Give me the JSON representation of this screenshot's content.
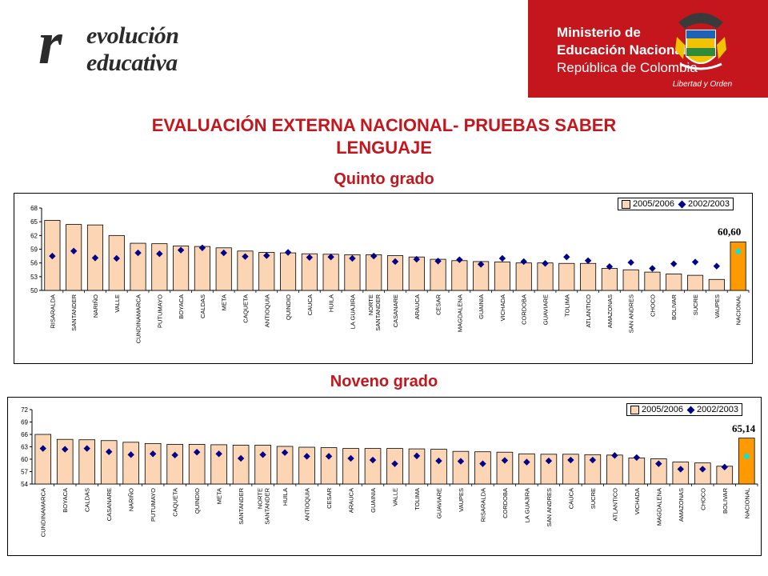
{
  "header": {
    "logo_r": "r",
    "logo_line1": "evolución",
    "logo_line2": "educativa",
    "ministry_line1": "Ministerio de",
    "ministry_line2": "Educación Nacional",
    "ministry_line3": "República de Colombia",
    "crest_caption": "Libertad y Orden"
  },
  "title": {
    "line1": "EVALUACIÓN EXTERNA NACIONAL- PRUEBAS SABER",
    "line2": "LENGUAJE"
  },
  "colors": {
    "bar": "#fcd5b4",
    "bar_national": "#ff9900",
    "marker": "#00008b",
    "marker_national": "#00e5e5",
    "accent_red": "#c4161c"
  },
  "chart_data": [
    {
      "type": "bar",
      "title": "Quinto grado",
      "legend": [
        "2005/2006",
        "2002/2003"
      ],
      "legend_position": "top-right",
      "ylim": [
        50,
        68
      ],
      "yticks": [
        50,
        53,
        56,
        59,
        62,
        65,
        68
      ],
      "categories": [
        "RISARALDA",
        "SANTANDER",
        "NARIÑO",
        "VALLE",
        "CUNDINAMARCA",
        "PUTUMAYO",
        "BOYACA",
        "CALDAS",
        "META",
        "CAQUETA",
        "ANTIOQUIA",
        "QUINDIO",
        "CAUCA",
        "HUILA",
        "LA GUAJIRA",
        "NORTE SANTANDER",
        "CASANARE",
        "ARAUCA",
        "CESAR",
        "MAGDALENA",
        "GUAINIA",
        "VICHADA",
        "CORDOBA",
        "GUAVIARE",
        "TOLIMA",
        "ATLANTICO",
        "AMAZONAS",
        "SAN ANDRES",
        "CHOCO",
        "BOLIVAR",
        "SUCRE",
        "VAUPES",
        "NACIONAL"
      ],
      "series": [
        {
          "name": "2005/2006",
          "type": "bar",
          "values": [
            65.3,
            64.4,
            64.3,
            62.0,
            60.3,
            60.2,
            59.7,
            59.6,
            59.3,
            58.6,
            58.3,
            58.2,
            58.0,
            57.9,
            57.8,
            57.8,
            57.6,
            57.3,
            56.8,
            56.5,
            56.3,
            56.2,
            56.0,
            56.0,
            55.9,
            55.9,
            54.8,
            54.5,
            54.0,
            53.6,
            53.3,
            52.4,
            60.6
          ]
        },
        {
          "name": "2002/2003",
          "type": "scatter",
          "values": [
            57.5,
            58.6,
            57.1,
            57.0,
            58.2,
            58.0,
            58.8,
            59.3,
            58.2,
            57.4,
            57.6,
            58.3,
            57.2,
            57.3,
            57.0,
            57.5,
            56.3,
            56.8,
            56.4,
            56.7,
            55.7,
            57.0,
            56.3,
            55.9,
            57.3,
            56.5,
            55.2,
            56.1,
            54.8,
            55.8,
            56.2,
            55.3,
            58.5
          ]
        }
      ],
      "data_labels": [
        {
          "category": "NACIONAL",
          "text": "60,60"
        }
      ]
    },
    {
      "type": "bar",
      "title": "Noveno grado",
      "legend": [
        "2005/2006",
        "2002/2003"
      ],
      "legend_position": "top-right",
      "ylim": [
        54,
        72
      ],
      "yticks": [
        54,
        57,
        60,
        63,
        66,
        69,
        72
      ],
      "categories": [
        "CUNDINAMARCA",
        "BOYACA",
        "CALDAS",
        "CASANARE",
        "NARIÑO",
        "PUTUMAYO",
        "CAQUETA",
        "QUINDIO",
        "META",
        "SANTANDER",
        "NORTE SANTANDER",
        "HUILA",
        "ANTIOQUIA",
        "CESAR",
        "ARAUCA",
        "GUAINIA",
        "VALLE",
        "TOLIMA",
        "GUAVIARE",
        "VAUPES",
        "RISARALDA",
        "CORDOBA",
        "LA GUAJIRA",
        "SAN ANDRES",
        "CAUCA",
        "SUCRE",
        "ATLANTICO",
        "VICHADA",
        "MAGDALENA",
        "AMAZONAS",
        "CHOCO",
        "BOLIVAR",
        "NACIONAL"
      ],
      "series": [
        {
          "name": "2005/2006",
          "type": "bar",
          "values": [
            66.0,
            64.8,
            64.7,
            64.5,
            64.1,
            63.8,
            63.6,
            63.6,
            63.5,
            63.4,
            63.4,
            63.1,
            62.9,
            62.8,
            62.6,
            62.6,
            62.6,
            62.5,
            62.4,
            61.9,
            61.8,
            61.7,
            61.3,
            61.2,
            61.2,
            61.1,
            61.0,
            60.3,
            60.1,
            59.3,
            59.1,
            58.3,
            65.1
          ]
        },
        {
          "name": "2002/2003",
          "type": "scatter",
          "values": [
            62.6,
            62.4,
            62.6,
            61.8,
            61.1,
            61.3,
            61.0,
            61.7,
            61.3,
            60.2,
            61.1,
            61.6,
            60.7,
            60.7,
            60.2,
            59.8,
            58.9,
            60.8,
            59.6,
            59.5,
            58.9,
            59.7,
            59.3,
            59.6,
            59.8,
            59.8,
            60.9,
            60.4,
            58.9,
            57.6,
            57.6,
            58.1,
            60.7
          ]
        }
      ],
      "data_labels": [
        {
          "category": "NACIONAL",
          "text": "65,14"
        }
      ]
    }
  ]
}
